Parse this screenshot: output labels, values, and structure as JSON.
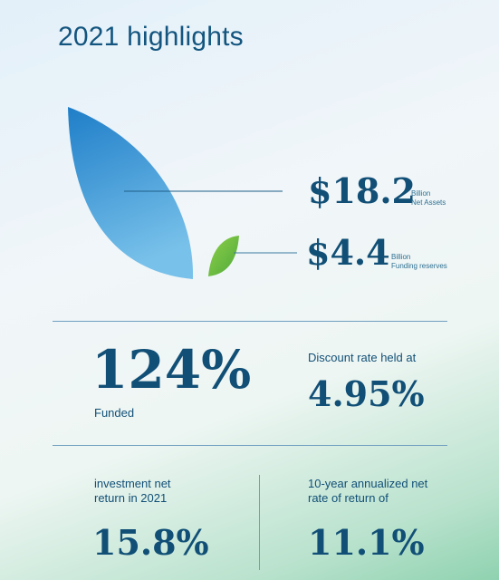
{
  "title": "2021 highlights",
  "net_assets": {
    "value": "$18.2",
    "unit": "Billion",
    "label": "Net Assets"
  },
  "funding_reserves": {
    "value": "$4.4",
    "unit": "Billion",
    "label": "Funding reserves"
  },
  "funded": {
    "value": "124%",
    "label": "Funded"
  },
  "discount_rate": {
    "label": "Discount rate held at",
    "value": "4.95%"
  },
  "investment_return": {
    "label_line1": "investment net",
    "label_line2": "return in 2021",
    "value": "15.8%"
  },
  "annualized_return": {
    "label_line1": "10-year annualized net",
    "label_line2": "rate of return of",
    "value": "11.1%"
  },
  "colors": {
    "navy": "#114f76",
    "leaf_blue": "#2f8fd0",
    "leaf_green": "#6cbf3f",
    "rule": "#6f9fc0"
  },
  "icons": [
    "large-leaf-icon",
    "small-leaf-icon"
  ]
}
